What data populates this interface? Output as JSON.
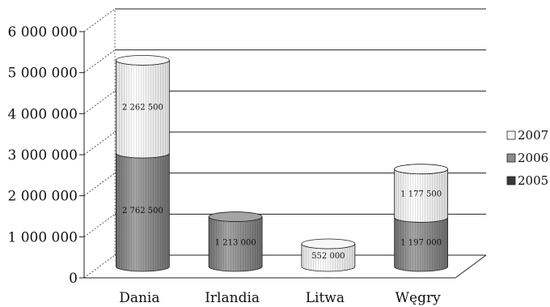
{
  "chart_data": {
    "type": "bar",
    "stacked": true,
    "style": "3d-cylinder",
    "categories": [
      "Dania",
      "Irlandia",
      "Litwa",
      "Węgry"
    ],
    "series": [
      {
        "name": "2005",
        "color": "#3a3a3a",
        "values": [
          0,
          0,
          0,
          0
        ]
      },
      {
        "name": "2006",
        "color": "#8c8c8c",
        "values": [
          2762500,
          1213000,
          0,
          1197000
        ]
      },
      {
        "name": "2007",
        "color": "#f4f4f4",
        "values": [
          2262500,
          0,
          552000,
          1177500
        ]
      }
    ],
    "data_labels": [
      {
        "category": "Dania",
        "series": "2006",
        "text": "2 762 500"
      },
      {
        "category": "Dania",
        "series": "2007",
        "text": "2 262 500"
      },
      {
        "category": "Irlandia",
        "series": "2006",
        "text": "1 213 000"
      },
      {
        "category": "Litwa",
        "series": "2007",
        "text": "552 000"
      },
      {
        "category": "Węgry",
        "series": "2006",
        "text": "1 197 000"
      },
      {
        "category": "Węgry",
        "series": "2007",
        "text": "1 177 500"
      }
    ],
    "y_ticks": [
      "0",
      "1 000 000",
      "2 000 000",
      "3 000 000",
      "4 000 000",
      "5 000 000",
      "6 000 000"
    ],
    "ylim": [
      0,
      6000000
    ],
    "legend": {
      "position": "right",
      "entries": [
        "2007",
        "2006",
        "2005"
      ]
    },
    "grid": true
  }
}
